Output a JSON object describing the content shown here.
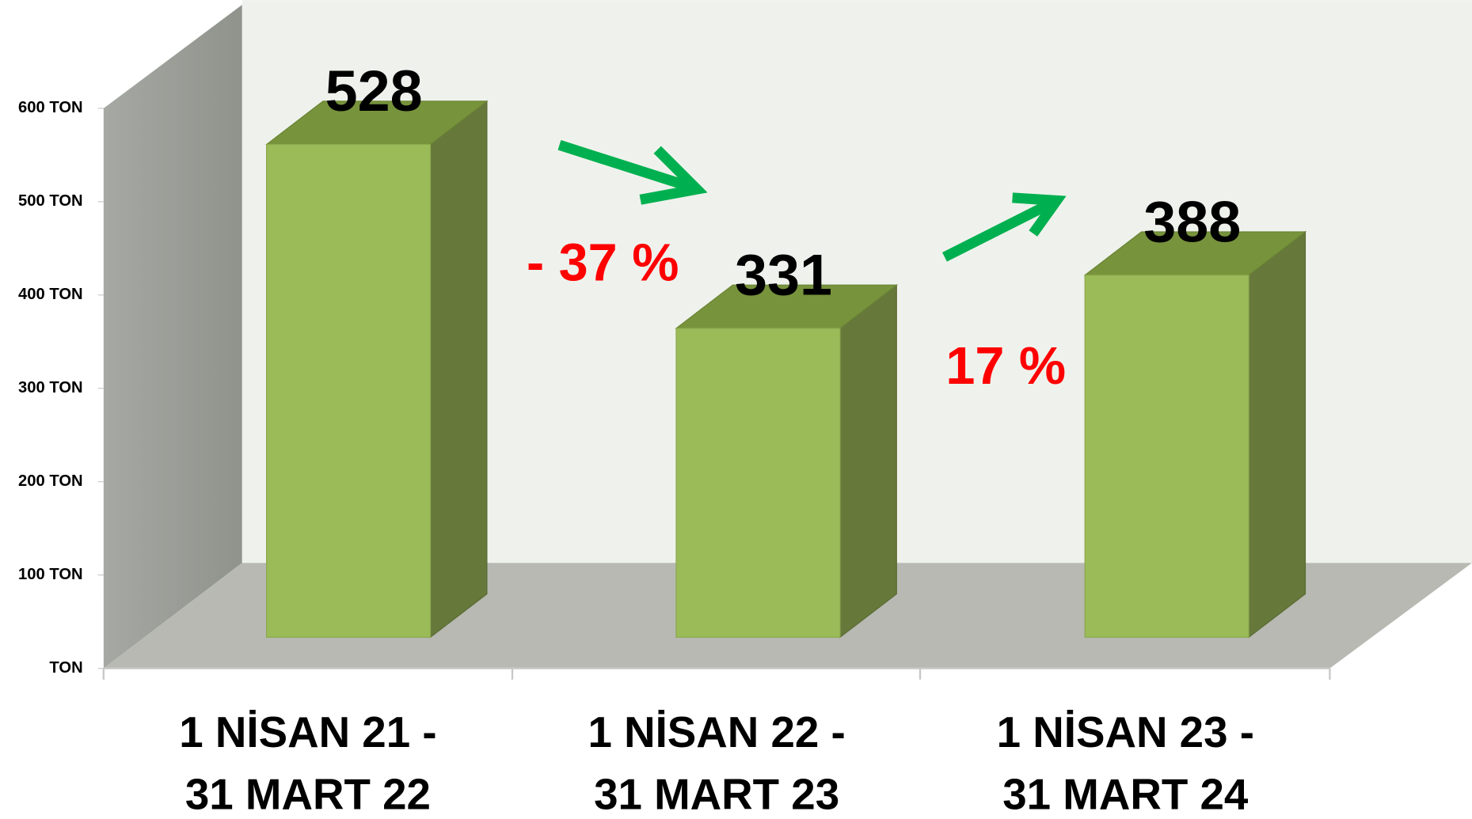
{
  "chart_data": {
    "type": "bar3d",
    "categories": [
      "1 NİSAN 21 -\n31 MART 22",
      "1 NİSAN 22 -\n31 MART 23",
      "1 NİSAN 23 -\n31 MART 24"
    ],
    "values": [
      528,
      331,
      388
    ],
    "color": "#9bbb59",
    "ylim": [
      0,
      600
    ],
    "yticks": [
      {
        "value": 0,
        "label": "TON"
      },
      {
        "value": 100,
        "label": "100 TON"
      },
      {
        "value": 200,
        "label": "200 TON"
      },
      {
        "value": 300,
        "label": "300 TON"
      },
      {
        "value": 400,
        "label": "400 TON"
      },
      {
        "value": 500,
        "label": "500 TON"
      },
      {
        "value": 600,
        "label": "600 TON"
      }
    ],
    "annotations": [
      "- 37 %",
      "17 %"
    ]
  }
}
